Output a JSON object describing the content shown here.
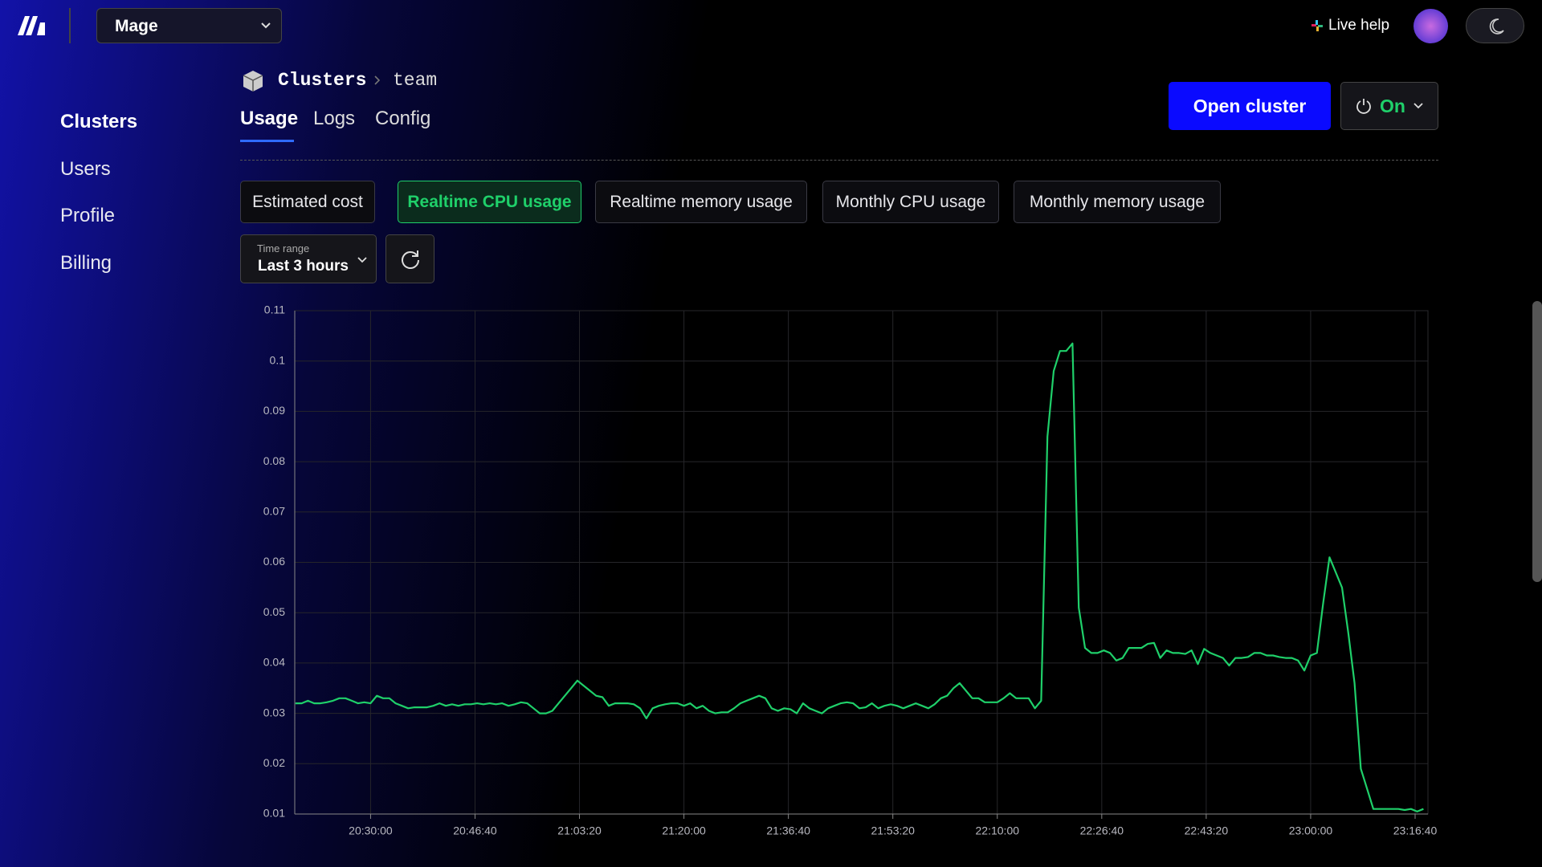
{
  "header": {
    "project": "Mage",
    "live_help": "Live help"
  },
  "sidebar": [
    "Clusters",
    "Users",
    "Profile",
    "Billing"
  ],
  "breadcrumb": [
    "Clusters",
    "team"
  ],
  "tabs": [
    "Usage",
    "Logs",
    "Config"
  ],
  "actions": {
    "open": "Open cluster",
    "power": "On"
  },
  "chart_tabs": [
    "Estimated cost",
    "Realtime CPU usage",
    "Realtime memory usage",
    "Monthly CPU usage",
    "Monthly memory usage"
  ],
  "time_range": {
    "label": "Time range",
    "value": "Last 3 hours"
  },
  "chart_data": {
    "type": "line",
    "color": "#1fd06a",
    "grid": true,
    "xlim": [
      73074,
      83923
    ],
    "ylim": [
      0.01,
      0.11
    ],
    "yticks": [
      0.01,
      0.02,
      0.03,
      0.04,
      0.05,
      0.06,
      0.07,
      0.08,
      0.09,
      0.1,
      0.11
    ],
    "xticks": [
      {
        "value": 73800,
        "label": "20:30:00"
      },
      {
        "value": 74800,
        "label": "20:46:40"
      },
      {
        "value": 75800,
        "label": "21:03:20"
      },
      {
        "value": 76800,
        "label": "21:20:00"
      },
      {
        "value": 77800,
        "label": "21:36:40"
      },
      {
        "value": 78800,
        "label": "21:53:20"
      },
      {
        "value": 79800,
        "label": "22:10:00"
      },
      {
        "value": 80800,
        "label": "22:26:40"
      },
      {
        "value": 81800,
        "label": "22:43:20"
      },
      {
        "value": 82800,
        "label": "23:00:00"
      },
      {
        "value": 83800,
        "label": "23:16:40"
      }
    ],
    "x": [
      73080,
      73140,
      73200,
      73260,
      73320,
      73380,
      73440,
      73500,
      73560,
      73620,
      73680,
      73740,
      73800,
      73860,
      73920,
      73980,
      74040,
      74100,
      74160,
      74220,
      74280,
      74340,
      74400,
      74460,
      74520,
      74580,
      74640,
      74700,
      74760,
      74820,
      74880,
      74940,
      75000,
      75060,
      75120,
      75180,
      75240,
      75300,
      75360,
      75420,
      75480,
      75540,
      75600,
      75660,
      75720,
      75780,
      75840,
      75900,
      75960,
      76020,
      76080,
      76140,
      76200,
      76260,
      76320,
      76380,
      76440,
      76500,
      76560,
      76620,
      76680,
      76740,
      76800,
      76860,
      76920,
      76980,
      77040,
      77100,
      77160,
      77220,
      77280,
      77340,
      77400,
      77460,
      77520,
      77580,
      77640,
      77700,
      77760,
      77820,
      77880,
      77940,
      78000,
      78060,
      78120,
      78180,
      78240,
      78300,
      78360,
      78420,
      78480,
      78540,
      78600,
      78660,
      78720,
      78780,
      78840,
      78900,
      78960,
      79020,
      79080,
      79140,
      79200,
      79260,
      79320,
      79380,
      79440,
      79500,
      79560,
      79620,
      79680,
      79740,
      79800,
      79860,
      79920,
      79980,
      80040,
      80100,
      80160,
      80220,
      80280,
      80340,
      80400,
      80460,
      80520,
      80580,
      80640,
      80700,
      80760,
      80820,
      80880,
      80940,
      81000,
      81060,
      81120,
      81180,
      81240,
      81300,
      81360,
      81420,
      81480,
      81540,
      81600,
      81660,
      81720,
      81780,
      81840,
      81900,
      81960,
      82020,
      82080,
      82140,
      82200,
      82260,
      82320,
      82380,
      82440,
      82500,
      82560,
      82620,
      82680,
      82740,
      82800,
      82860,
      82920,
      82980,
      83040,
      83100,
      83160,
      83220,
      83280,
      83340,
      83400,
      83460,
      83520,
      83580,
      83640,
      83700,
      83760,
      83820,
      83880
    ],
    "values": [
      0.032,
      0.032,
      0.0325,
      0.032,
      0.032,
      0.0322,
      0.0325,
      0.033,
      0.033,
      0.0325,
      0.032,
      0.0322,
      0.032,
      0.0335,
      0.033,
      0.033,
      0.032,
      0.0315,
      0.031,
      0.0312,
      0.0312,
      0.0312,
      0.0315,
      0.032,
      0.0315,
      0.0318,
      0.0315,
      0.0318,
      0.0318,
      0.032,
      0.0318,
      0.032,
      0.0318,
      0.032,
      0.0315,
      0.0318,
      0.0322,
      0.032,
      0.031,
      0.03,
      0.03,
      0.0305,
      0.032,
      0.0335,
      0.035,
      0.0365,
      0.0355,
      0.0345,
      0.0335,
      0.0332,
      0.0315,
      0.032,
      0.032,
      0.032,
      0.0318,
      0.031,
      0.029,
      0.031,
      0.0315,
      0.0318,
      0.032,
      0.032,
      0.0315,
      0.032,
      0.031,
      0.0315,
      0.0305,
      0.03,
      0.0302,
      0.0302,
      0.031,
      0.032,
      0.0325,
      0.033,
      0.0335,
      0.033,
      0.031,
      0.0305,
      0.031,
      0.0308,
      0.03,
      0.032,
      0.031,
      0.0305,
      0.03,
      0.031,
      0.0315,
      0.032,
      0.0322,
      0.032,
      0.031,
      0.0312,
      0.032,
      0.031,
      0.0315,
      0.0318,
      0.0315,
      0.031,
      0.0315,
      0.032,
      0.0315,
      0.031,
      0.0318,
      0.033,
      0.0335,
      0.035,
      0.036,
      0.0345,
      0.033,
      0.033,
      0.0322,
      0.0322,
      0.0322,
      0.033,
      0.034,
      0.033,
      0.033,
      0.033,
      0.031,
      0.0325,
      0.085,
      0.098,
      0.102,
      0.102,
      0.1035,
      0.051,
      0.043,
      0.042,
      0.042,
      0.0425,
      0.042,
      0.0405,
      0.041,
      0.043,
      0.043,
      0.043,
      0.0438,
      0.044,
      0.041,
      0.0425,
      0.042,
      0.042,
      0.0418,
      0.0425,
      0.0398,
      0.0428,
      0.042,
      0.0415,
      0.041,
      0.0395,
      0.041,
      0.041,
      0.0412,
      0.042,
      0.042,
      0.0415,
      0.0415,
      0.0412,
      0.041,
      0.041,
      0.0405,
      0.0385,
      0.0415,
      0.042,
      0.052,
      0.061,
      0.058,
      0.055,
      0.046,
      0.036,
      0.019,
      0.015,
      0.011,
      0.011,
      0.011,
      0.011,
      0.011,
      0.0108,
      0.011,
      0.0105,
      0.011
    ]
  }
}
